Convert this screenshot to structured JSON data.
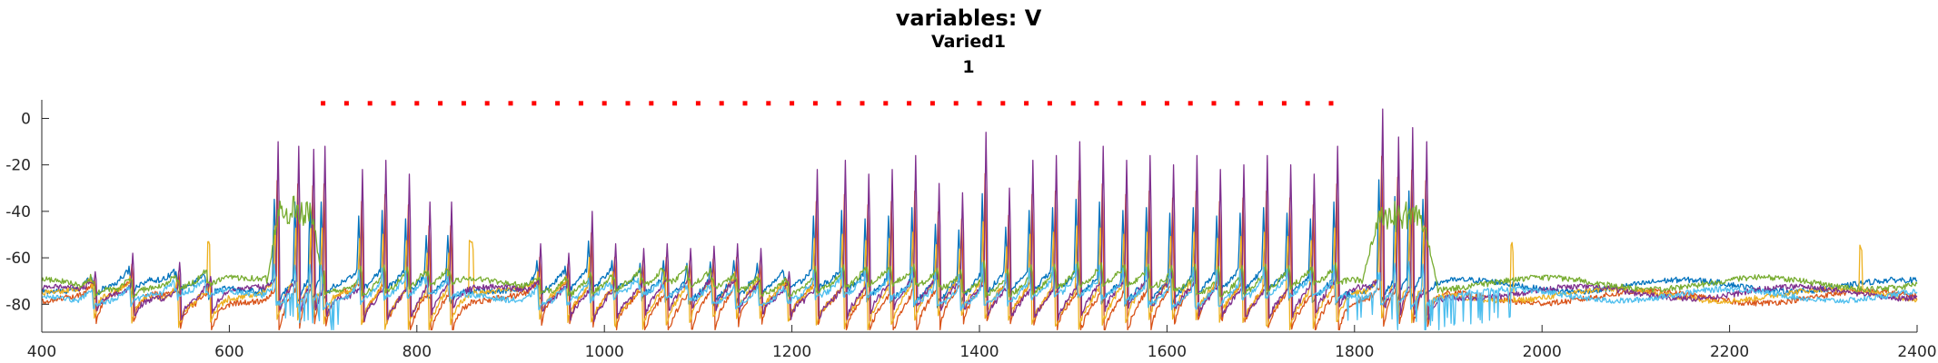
{
  "chart_data": {
    "type": "line",
    "title": "variables: V",
    "subtitle": "Varied1",
    "subtitle2": "1",
    "xlabel": "",
    "ylabel": "",
    "xlim": [
      400,
      2400
    ],
    "ylim": [
      -92,
      8
    ],
    "grid": false,
    "x_ticks": [
      400,
      600,
      800,
      1000,
      1200,
      1400,
      1600,
      1800,
      2000,
      2200,
      2400
    ],
    "y_ticks": [
      0,
      -20,
      -40,
      -60,
      -80
    ],
    "stimulus_markers": {
      "color": "#ff0000",
      "y": 6.5,
      "x_start": 700,
      "x_end": 1780,
      "spacing": 25
    },
    "series": [
      {
        "color": "#0072bd",
        "base": -72,
        "spike_mode": "regular",
        "phase": 5,
        "burst": false
      },
      {
        "color": "#d95319",
        "base": -77,
        "spike_mode": "regular",
        "phase": 3,
        "burst": false
      },
      {
        "color": "#edb120",
        "base": -76,
        "spike_mode": "regular",
        "phase": 8,
        "burst": false
      },
      {
        "color": "#7e2f8e",
        "base": -75,
        "spike_mode": "regular",
        "phase": 0,
        "burst": false
      },
      {
        "color": "#77ac30",
        "base": -71,
        "spike_mode": "slow",
        "phase": 12,
        "burst": true
      },
      {
        "color": "#4dbeee",
        "base": -76,
        "spike_mode": "noisy",
        "phase": 2,
        "burst": false
      }
    ],
    "spike_times": [
      455,
      495,
      545,
      578,
      650,
      672,
      688,
      700,
      740,
      765,
      790,
      812,
      835,
      930,
      960,
      985,
      1010,
      1040,
      1065,
      1090,
      1115,
      1140,
      1165,
      1195,
      1225,
      1255,
      1280,
      1305,
      1330,
      1355,
      1380,
      1405,
      1430,
      1455,
      1480,
      1505,
      1530,
      1555,
      1580,
      1605,
      1630,
      1655,
      1680,
      1705,
      1730,
      1755,
      1780,
      1828,
      1845,
      1860,
      1875
    ],
    "spike_peaks": [
      -66,
      -58,
      -62,
      -68,
      -10,
      -12,
      -14,
      -12,
      -22,
      -18,
      -24,
      -36,
      -36,
      -54,
      -58,
      -40,
      -54,
      -56,
      -54,
      -56,
      -55,
      -54,
      -56,
      -66,
      -22,
      -18,
      -24,
      -22,
      -16,
      -28,
      -32,
      -6,
      -30,
      -18,
      -16,
      -10,
      -12,
      -18,
      -16,
      -20,
      -16,
      -22,
      -20,
      -16,
      -20,
      -24,
      -12,
      4,
      -8,
      -4,
      -10
    ],
    "burst_windows": [
      [
        640,
        700,
        -40
      ],
      [
        1808,
        1888,
        -42
      ]
    ]
  }
}
